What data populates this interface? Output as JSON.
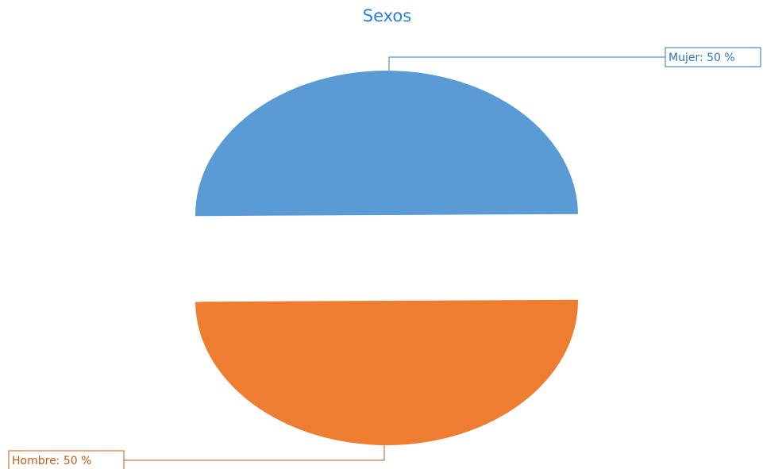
{
  "chart_data": {
    "type": "pie",
    "title": "Sexos",
    "title_color": "#2f7ed8",
    "slices": [
      {
        "name": "Mujer",
        "value": 50,
        "label": "Mujer: 50 %",
        "color": "#5b9bd5"
      },
      {
        "name": "Hombre",
        "value": 50,
        "label": "Hombre: 50 %",
        "color": "#ed7d31"
      }
    ],
    "exploded": true,
    "legend": "none"
  }
}
